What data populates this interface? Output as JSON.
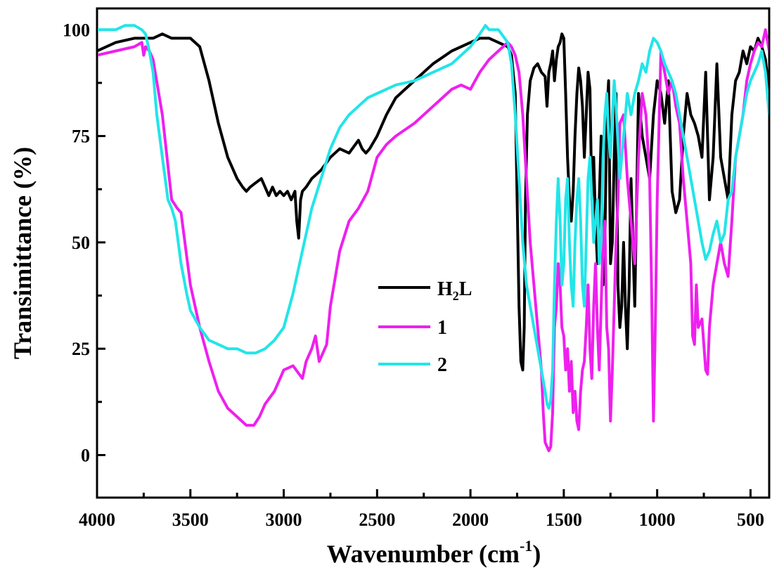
{
  "chart_data": {
    "type": "line",
    "xlabel_main": "Wavenumber (cm",
    "xlabel_sup": "-1",
    "xlabel_end": ")",
    "ylabel": "Transimittance (%)",
    "xlim": [
      4000,
      400
    ],
    "ylim": [
      -10,
      105
    ],
    "x_ticks": [
      4000,
      3500,
      3000,
      2500,
      2000,
      1500,
      1000,
      500
    ],
    "y_ticks": [
      0,
      25,
      50,
      75,
      100
    ],
    "legend_position": "center",
    "series": [
      {
        "legend_main": "H",
        "legend_sub": "2",
        "legend_end": "L",
        "color": "#000000",
        "x": [
          4000,
          3900,
          3800,
          3750,
          3700,
          3650,
          3600,
          3500,
          3450,
          3400,
          3350,
          3300,
          3250,
          3220,
          3200,
          3180,
          3150,
          3120,
          3100,
          3080,
          3060,
          3040,
          3020,
          3000,
          2980,
          2960,
          2940,
          2930,
          2920,
          2910,
          2900,
          2880,
          2850,
          2800,
          2750,
          2700,
          2650,
          2600,
          2580,
          2560,
          2540,
          2500,
          2450,
          2400,
          2300,
          2200,
          2100,
          2000,
          1950,
          1900,
          1850,
          1800,
          1780,
          1760,
          1750,
          1740,
          1730,
          1720,
          1712,
          1705,
          1695,
          1680,
          1660,
          1640,
          1620,
          1600,
          1590,
          1580,
          1570,
          1560,
          1550,
          1540,
          1530,
          1520,
          1510,
          1500,
          1490,
          1480,
          1470,
          1460,
          1450,
          1440,
          1430,
          1420,
          1410,
          1400,
          1390,
          1380,
          1370,
          1360,
          1350,
          1340,
          1330,
          1320,
          1310,
          1300,
          1290,
          1280,
          1270,
          1260,
          1250,
          1240,
          1230,
          1220,
          1210,
          1200,
          1190,
          1180,
          1170,
          1160,
          1150,
          1140,
          1130,
          1120,
          1110,
          1100,
          1080,
          1060,
          1040,
          1020,
          1000,
          980,
          960,
          940,
          920,
          900,
          880,
          860,
          840,
          820,
          800,
          780,
          760,
          740,
          720,
          700,
          680,
          660,
          640,
          620,
          600,
          580,
          560,
          540,
          520,
          500,
          480,
          460,
          440,
          420,
          400
        ],
        "y": [
          95,
          97,
          98,
          98,
          98,
          99,
          98,
          98,
          96,
          88,
          78,
          70,
          65,
          63,
          62,
          63,
          64,
          65,
          63,
          61,
          63,
          61,
          62,
          61,
          62,
          60,
          62,
          55,
          51,
          60,
          62,
          63,
          65,
          67,
          70,
          72,
          71,
          74,
          72,
          71,
          72,
          75,
          80,
          84,
          88,
          92,
          95,
          97,
          98,
          98,
          97,
          96,
          94,
          85,
          60,
          35,
          22,
          20,
          30,
          60,
          80,
          88,
          91,
          92,
          90,
          89,
          82,
          90,
          92,
          95,
          88,
          93,
          96,
          97,
          99,
          98,
          85,
          70,
          60,
          55,
          62,
          75,
          85,
          91,
          88,
          82,
          70,
          80,
          90,
          86,
          60,
          70,
          55,
          45,
          60,
          75,
          40,
          50,
          80,
          88,
          45,
          50,
          70,
          85,
          40,
          30,
          35,
          50,
          35,
          25,
          40,
          65,
          50,
          35,
          60,
          85,
          75,
          70,
          65,
          80,
          88,
          85,
          78,
          88,
          62,
          57,
          60,
          75,
          85,
          80,
          78,
          75,
          70,
          90,
          60,
          70,
          92,
          70,
          65,
          60,
          80,
          88,
          90,
          95,
          92,
          96,
          95,
          98,
          96,
          93,
          85
        ],
        "hidden_y": []
      },
      {
        "legend_main": "1",
        "legend_sub": "",
        "legend_end": "",
        "color": "#ee20ee",
        "x": [
          4000,
          3900,
          3800,
          3760,
          3750,
          3740,
          3720,
          3700,
          3650,
          3600,
          3570,
          3550,
          3500,
          3450,
          3400,
          3350,
          3300,
          3250,
          3200,
          3160,
          3130,
          3100,
          3050,
          3000,
          2950,
          2900,
          2880,
          2850,
          2830,
          2810,
          2790,
          2770,
          2750,
          2700,
          2650,
          2600,
          2550,
          2500,
          2450,
          2400,
          2300,
          2200,
          2100,
          2050,
          2000,
          1950,
          1900,
          1850,
          1800,
          1780,
          1760,
          1740,
          1720,
          1700,
          1680,
          1660,
          1640,
          1620,
          1610,
          1600,
          1590,
          1580,
          1570,
          1560,
          1550,
          1540,
          1530,
          1520,
          1510,
          1500,
          1490,
          1480,
          1470,
          1460,
          1450,
          1440,
          1430,
          1420,
          1410,
          1400,
          1390,
          1380,
          1370,
          1360,
          1350,
          1340,
          1330,
          1320,
          1310,
          1300,
          1290,
          1280,
          1270,
          1260,
          1250,
          1240,
          1230,
          1220,
          1210,
          1200,
          1180,
          1160,
          1140,
          1120,
          1100,
          1080,
          1060,
          1040,
          1030,
          1020,
          1010,
          1000,
          980,
          960,
          940,
          920,
          900,
          880,
          860,
          840,
          820,
          810,
          800,
          790,
          780,
          760,
          740,
          730,
          720,
          700,
          680,
          660,
          640,
          620,
          600,
          580,
          560,
          540,
          520,
          500,
          480,
          460,
          440,
          420,
          400
        ],
        "y": [
          94,
          95,
          96,
          97,
          94,
          96,
          95,
          93,
          80,
          60,
          58,
          57,
          40,
          30,
          22,
          15,
          11,
          9,
          7,
          7,
          9,
          12,
          15,
          20,
          21,
          18,
          22,
          25,
          28,
          22,
          24,
          26,
          35,
          48,
          55,
          58,
          62,
          70,
          73,
          75,
          78,
          82,
          86,
          87,
          86,
          90,
          93,
          95,
          97,
          96,
          94,
          90,
          80,
          65,
          50,
          40,
          30,
          20,
          10,
          3,
          2,
          1,
          2,
          10,
          30,
          35,
          45,
          40,
          30,
          28,
          20,
          25,
          15,
          22,
          10,
          15,
          8,
          6,
          15,
          20,
          22,
          30,
          40,
          25,
          18,
          35,
          45,
          30,
          20,
          35,
          50,
          55,
          30,
          25,
          8,
          20,
          35,
          50,
          60,
          78,
          80,
          65,
          55,
          45,
          70,
          85,
          80,
          65,
          40,
          8,
          30,
          60,
          95,
          90,
          85,
          88,
          82,
          78,
          65,
          55,
          45,
          28,
          26,
          40,
          30,
          32,
          20,
          19,
          30,
          40,
          45,
          50,
          45,
          42,
          55,
          70,
          75,
          80,
          88,
          92,
          95,
          97,
          96,
          100,
          95
        ],
        "hidden_y": []
      },
      {
        "legend_main": "2",
        "legend_sub": "",
        "legend_end": "",
        "color": "#22e5e8",
        "x": [
          4000,
          3900,
          3850,
          3800,
          3760,
          3740,
          3720,
          3700,
          3680,
          3650,
          3620,
          3600,
          3580,
          3550,
          3520,
          3500,
          3450,
          3400,
          3350,
          3300,
          3250,
          3200,
          3150,
          3100,
          3050,
          3000,
          2950,
          2900,
          2850,
          2800,
          2750,
          2700,
          2650,
          2600,
          2550,
          2500,
          2450,
          2400,
          2300,
          2200,
          2100,
          2000,
          1950,
          1920,
          1900,
          1850,
          1800,
          1780,
          1760,
          1740,
          1720,
          1700,
          1680,
          1660,
          1640,
          1620,
          1600,
          1590,
          1580,
          1570,
          1560,
          1550,
          1540,
          1530,
          1520,
          1510,
          1500,
          1490,
          1480,
          1470,
          1460,
          1450,
          1440,
          1430,
          1420,
          1410,
          1400,
          1390,
          1380,
          1370,
          1360,
          1350,
          1340,
          1330,
          1320,
          1310,
          1300,
          1290,
          1280,
          1270,
          1260,
          1250,
          1240,
          1230,
          1220,
          1200,
          1180,
          1160,
          1140,
          1120,
          1100,
          1080,
          1060,
          1040,
          1020,
          1000,
          980,
          960,
          940,
          920,
          900,
          880,
          860,
          840,
          820,
          800,
          780,
          760,
          740,
          720,
          700,
          680,
          660,
          640,
          620,
          600,
          580,
          560,
          540,
          520,
          500,
          480,
          460,
          440,
          420,
          400
        ],
        "y": [
          100,
          100,
          101,
          101,
          100,
          99,
          95,
          90,
          80,
          70,
          60,
          58,
          55,
          45,
          38,
          34,
          30,
          27,
          26,
          25,
          25,
          24,
          24,
          25,
          27,
          30,
          38,
          48,
          58,
          65,
          72,
          77,
          80,
          82,
          84,
          85,
          86,
          87,
          88,
          90,
          92,
          96,
          99,
          101,
          100,
          100,
          97,
          92,
          80,
          65,
          50,
          40,
          35,
          30,
          25,
          20,
          15,
          12,
          11,
          13,
          20,
          40,
          55,
          65,
          55,
          40,
          45,
          60,
          65,
          50,
          40,
          35,
          50,
          60,
          65,
          55,
          40,
          35,
          50,
          65,
          70,
          60,
          50,
          55,
          60,
          45,
          50,
          70,
          80,
          85,
          75,
          70,
          80,
          88,
          82,
          65,
          75,
          85,
          80,
          85,
          88,
          92,
          90,
          95,
          98,
          97,
          95,
          92,
          90,
          88,
          85,
          80,
          75,
          70,
          65,
          60,
          55,
          50,
          46,
          48,
          52,
          55,
          50,
          52,
          60,
          62,
          70,
          75,
          80,
          85,
          88,
          90,
          92,
          95,
          90,
          80
        ],
        "hidden_y": []
      }
    ]
  }
}
